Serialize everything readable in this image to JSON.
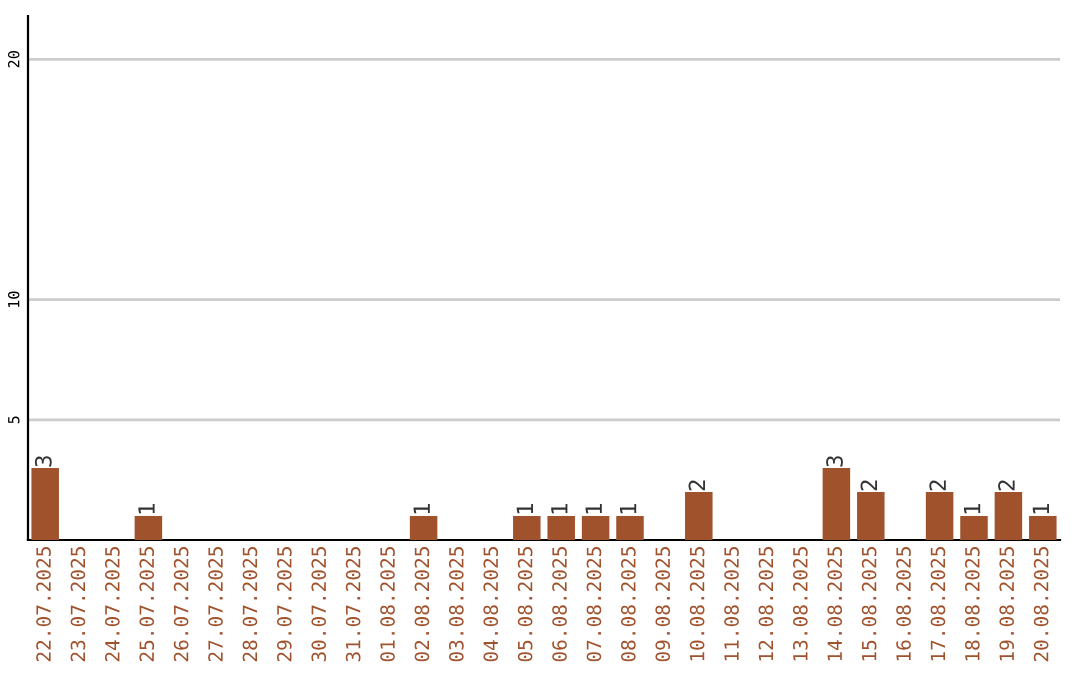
{
  "chart_data": {
    "type": "bar",
    "categories": [
      "22.07.2025",
      "23.07.2025",
      "24.07.2025",
      "25.07.2025",
      "26.07.2025",
      "27.07.2025",
      "28.07.2025",
      "29.07.2025",
      "30.07.2025",
      "31.07.2025",
      "01.08.2025",
      "02.08.2025",
      "03.08.2025",
      "04.08.2025",
      "05.08.2025",
      "06.08.2025",
      "07.08.2025",
      "08.08.2025",
      "09.08.2025",
      "10.08.2025",
      "11.08.2025",
      "12.08.2025",
      "13.08.2025",
      "14.08.2025",
      "15.08.2025",
      "16.08.2025",
      "17.08.2025",
      "18.08.2025",
      "19.08.2025",
      "20.08.2025"
    ],
    "values": [
      3,
      0,
      0,
      1,
      0,
      0,
      0,
      0,
      0,
      0,
      0,
      1,
      0,
      0,
      1,
      1,
      1,
      1,
      0,
      2,
      0,
      0,
      0,
      3,
      2,
      0,
      2,
      1,
      2,
      1
    ],
    "value_labels": [
      "3",
      null,
      null,
      "1",
      null,
      null,
      null,
      null,
      null,
      null,
      null,
      "1",
      null,
      null,
      "1",
      "1",
      "1",
      "1",
      null,
      "2",
      null,
      null,
      null,
      "3",
      "2",
      null,
      "2",
      "1",
      "2",
      "1"
    ],
    "color": "#a0522d",
    "ylim": [
      0,
      21.8
    ],
    "yticks": [
      5,
      10,
      20
    ],
    "grid": "y"
  }
}
